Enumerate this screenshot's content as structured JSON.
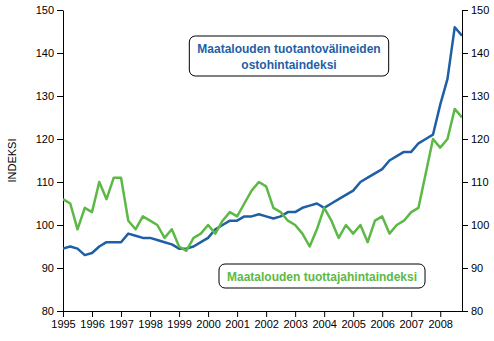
{
  "chart_data": {
    "type": "line",
    "y_label": "INDEKSI",
    "x": [
      1995,
      1995.25,
      1995.5,
      1995.75,
      1996,
      1996.25,
      1996.5,
      1996.75,
      1997,
      1997.25,
      1997.5,
      1997.75,
      1998,
      1998.25,
      1998.5,
      1998.75,
      1999,
      1999.25,
      1999.5,
      1999.75,
      2000,
      2000.25,
      2000.5,
      2000.75,
      2001,
      2001.25,
      2001.5,
      2001.75,
      2002,
      2002.25,
      2002.5,
      2002.75,
      2003,
      2003.25,
      2003.5,
      2003.75,
      2004,
      2004.25,
      2004.5,
      2004.75,
      2005,
      2005.25,
      2005.5,
      2005.75,
      2006,
      2006.25,
      2006.5,
      2006.75,
      2007,
      2007.25,
      2007.5,
      2007.75,
      2008,
      2008.25,
      2008.5,
      2008.75
    ],
    "series": [
      {
        "color": "#1f5fa6",
        "values": [
          94.5,
          95,
          94.5,
          93,
          93.5,
          95,
          96,
          96,
          96,
          98,
          97.5,
          97,
          97,
          96.5,
          96,
          95.5,
          94.5,
          94.5,
          95,
          96,
          97,
          99,
          100,
          101,
          101,
          102,
          102,
          102.5,
          102,
          101.5,
          102,
          103,
          103,
          104,
          104.5,
          105,
          104,
          105,
          106,
          107,
          108,
          110,
          111,
          112,
          113,
          115,
          116,
          117,
          117,
          119,
          120,
          121,
          128,
          134,
          146,
          144
        ]
      },
      {
        "color": "#5cb946",
        "values": [
          106,
          105,
          99,
          104,
          103,
          110,
          106,
          111,
          111,
          101,
          99,
          102,
          101,
          100,
          97,
          99,
          95,
          94,
          97,
          98,
          100,
          98,
          101,
          103,
          102,
          105,
          108,
          110,
          109,
          104,
          103,
          101,
          100,
          98,
          95,
          99,
          104,
          101,
          97,
          100,
          98,
          100,
          96,
          101,
          102,
          98,
          100,
          101,
          103,
          104,
          112,
          120,
          118,
          120,
          127,
          125
        ]
      }
    ],
    "annotations": [
      {
        "text": [
          "Maatalouden tuotantovälineiden",
          "ostohintaindeksi"
        ],
        "color": "#1f5fa6"
      },
      {
        "text": [
          "Maatalouden tuottajahintaindeksi"
        ],
        "color": "#5cb946"
      }
    ],
    "xlim": [
      1995,
      2008.75
    ],
    "xticks": [
      1995,
      1996,
      1997,
      1998,
      1999,
      2000,
      2001,
      2002,
      2003,
      2004,
      2005,
      2006,
      2007,
      2008
    ],
    "ylim": [
      80,
      150
    ],
    "yticks": [
      80,
      90,
      100,
      110,
      120,
      130,
      140,
      150
    ],
    "y2lim": [
      80,
      150
    ],
    "y2ticks": [
      80,
      90,
      100,
      110,
      120,
      130,
      140,
      150
    ],
    "grid": false
  }
}
